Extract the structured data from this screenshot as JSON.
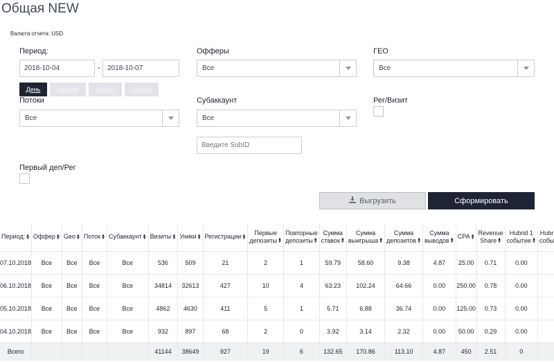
{
  "page": {
    "title": "Общая NEW",
    "currency": "Валюта отчета: USD"
  },
  "filters": {
    "period_label": "Период:",
    "date_from": "2018-10-04",
    "date_sep": "-",
    "date_to": "2018-10-07",
    "period_buttons": [
      "День",
      "Неделя",
      "Месяц",
      "Общий"
    ],
    "offers_label": "Офферы",
    "offers_value": "Все",
    "geo_label": "ГЕО",
    "geo_value": "Все",
    "streams_label": "Потоки",
    "streams_value": "Все",
    "subaccount_label": "Субаккаунт",
    "subaccount_value": "Все",
    "reg_visit_label": "Рег/Визит",
    "subid_placeholder": "Введите SubID",
    "first_dep_label": "Первый деп/Рег"
  },
  "actions": {
    "export_label": "Выгрузить",
    "generate_label": "Сформировать"
  },
  "table": {
    "headers": [
      [
        "Период:"
      ],
      [
        "Оффер"
      ],
      [
        "Geo"
      ],
      [
        "Поток"
      ],
      [
        "Субаккаунт"
      ],
      [
        "Визиты"
      ],
      [
        "Уники"
      ],
      [
        "Регистрации"
      ],
      [
        "Первые",
        "депозиты"
      ],
      [
        "Повторные",
        "депозиты"
      ],
      [
        "Сумма",
        "ставок"
      ],
      [
        "Сумма",
        "выигрыша"
      ],
      [
        "Сумма",
        "депозитов"
      ],
      [
        "Сумма",
        "выводов"
      ],
      [
        "CPA"
      ],
      [
        "Revenue",
        "Share"
      ],
      [
        "Hubrid 1",
        "событие"
      ],
      [
        "Hubr",
        "собы"
      ]
    ],
    "rows": [
      [
        "07.10.2018",
        "Все",
        "Все",
        "Все",
        "Все",
        "536",
        "509",
        "21",
        "2",
        "1",
        "59.79",
        "58.60",
        "9.38",
        "4.87",
        "25.00",
        "0.71",
        "0.00",
        ""
      ],
      [
        "06.10.2018",
        "Все",
        "Все",
        "Все",
        "Все",
        "34814",
        "32613",
        "427",
        "10",
        "4",
        "63.23",
        "102.24",
        "64.66",
        "0.00",
        "250.00",
        "0.78",
        "0.00",
        ""
      ],
      [
        "05.10.2018",
        "Все",
        "Все",
        "Все",
        "Все",
        "4862",
        "4630",
        "411",
        "5",
        "1",
        "5.71",
        "6.88",
        "36.74",
        "0.00",
        "125.00",
        "0.73",
        "0.00",
        ""
      ],
      [
        "04.10.2018",
        "Все",
        "Все",
        "Все",
        "Все",
        "932",
        "897",
        "68",
        "2",
        "0",
        "3.92",
        "3.14",
        "2.32",
        "0.00",
        "50.00",
        "0.29",
        "0.00",
        ""
      ]
    ],
    "total": [
      "Всего",
      "",
      "",
      "",
      "",
      "41144",
      "38649",
      "927",
      "19",
      "6",
      "132.65",
      "170.86",
      "113.10",
      "4.87",
      "450",
      "2.51",
      "0",
      ""
    ]
  }
}
